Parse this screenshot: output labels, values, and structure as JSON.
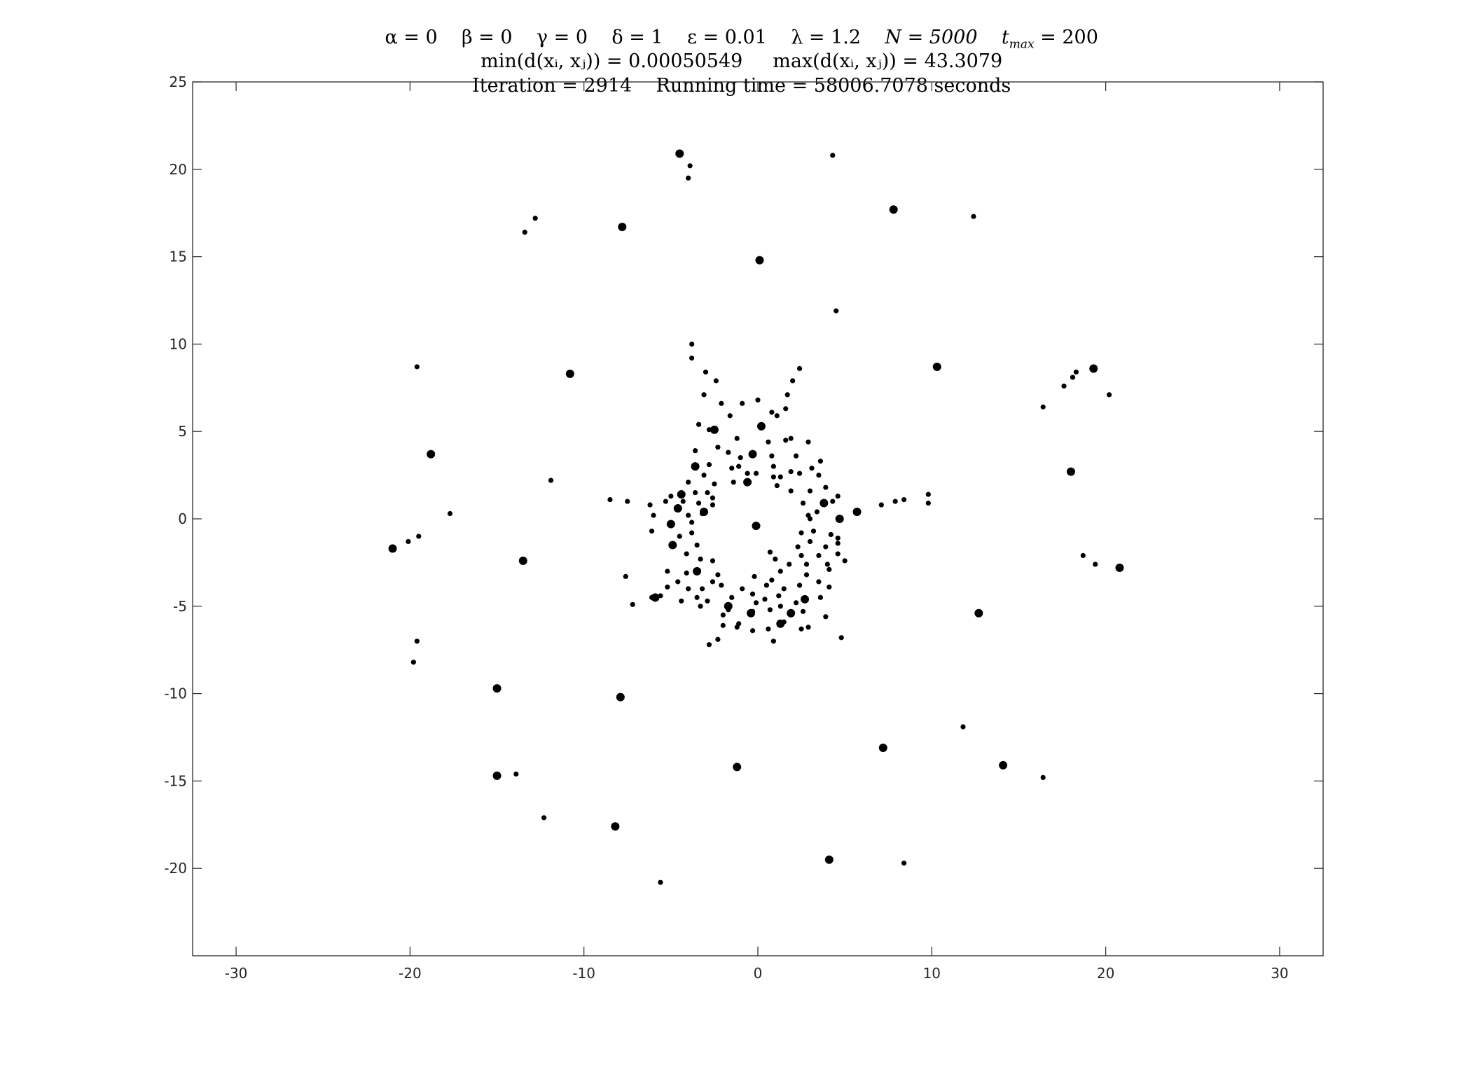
{
  "title": {
    "line1": {
      "alpha": "α = 0",
      "beta": "β = 0",
      "gamma": "γ = 0",
      "delta": "δ = 1",
      "epsilon": "ε = 0.01",
      "lambda": "λ = 1.2",
      "N": "N = 5000",
      "tmax_base": "t",
      "tmax_sub": "max",
      "tmax_value": " = 200"
    },
    "line2": {
      "min": "min(d(xᵢ, xⱼ)) = 0.00050549",
      "max": "max(d(xᵢ, xⱼ)) = 43.3079"
    },
    "line3": {
      "iteration": "Iteration = 2914",
      "running_time": "Running time = 58006.7078 seconds"
    }
  },
  "chart_data": {
    "type": "scatter",
    "title": "",
    "xlabel": "",
    "ylabel": "",
    "xlim": [
      -32.5,
      32.5
    ],
    "ylim": [
      -25,
      25
    ],
    "xticks": [
      -30,
      -20,
      -10,
      0,
      10,
      20,
      30
    ],
    "yticks": [
      -20,
      -15,
      -10,
      -5,
      0,
      5,
      10,
      15,
      20,
      25
    ],
    "grid": false,
    "color": "#000000",
    "small_points": [
      [
        4.3,
        20.8
      ],
      [
        -3.9,
        20.2
      ],
      [
        -4.0,
        19.5
      ],
      [
        12.4,
        17.3
      ],
      [
        -12.8,
        17.2
      ],
      [
        -13.4,
        16.4
      ],
      [
        4.5,
        11.9
      ],
      [
        -3.8,
        10.0
      ],
      [
        -3.8,
        9.2
      ],
      [
        2.4,
        8.6
      ],
      [
        -3.0,
        8.4
      ],
      [
        -2.4,
        7.9
      ],
      [
        2.0,
        7.9
      ],
      [
        -19.6,
        8.7
      ],
      [
        18.3,
        8.4
      ],
      [
        18.1,
        8.1
      ],
      [
        17.6,
        7.6
      ],
      [
        20.2,
        7.1
      ],
      [
        16.4,
        6.4
      ],
      [
        -3.1,
        7.1
      ],
      [
        1.7,
        7.1
      ],
      [
        -2.1,
        6.6
      ],
      [
        -0.9,
        6.6
      ],
      [
        0.0,
        6.8
      ],
      [
        1.6,
        6.3
      ],
      [
        0.8,
        6.1
      ],
      [
        1.1,
        5.9
      ],
      [
        -3.4,
        5.4
      ],
      [
        -2.8,
        5.1
      ],
      [
        -1.2,
        4.6
      ],
      [
        -1.6,
        5.9
      ],
      [
        0.6,
        4.4
      ],
      [
        1.9,
        4.6
      ],
      [
        2.9,
        4.4
      ],
      [
        -2.3,
        4.1
      ],
      [
        -1.7,
        3.8
      ],
      [
        -3.6,
        3.9
      ],
      [
        -1.0,
        3.5
      ],
      [
        0.8,
        3.6
      ],
      [
        2.2,
        3.6
      ],
      [
        3.6,
        3.3
      ],
      [
        -2.8,
        3.1
      ],
      [
        -1.5,
        2.9
      ],
      [
        0.9,
        3.0
      ],
      [
        3.1,
        2.9
      ],
      [
        3.5,
        2.5
      ],
      [
        -3.1,
        2.5
      ],
      [
        -2.5,
        2.0
      ],
      [
        -1.4,
        2.1
      ],
      [
        0.9,
        2.4
      ],
      [
        1.3,
        2.4
      ],
      [
        2.4,
        2.6
      ],
      [
        1.9,
        2.7
      ],
      [
        -0.1,
        2.6
      ],
      [
        -4.0,
        2.1
      ],
      [
        -3.6,
        1.5
      ],
      [
        -2.9,
        1.5
      ],
      [
        1.1,
        1.9
      ],
      [
        1.9,
        1.6
      ],
      [
        3.0,
        1.6
      ],
      [
        3.9,
        1.8
      ],
      [
        4.6,
        1.3
      ],
      [
        -4.3,
        1.0
      ],
      [
        -3.4,
        0.9
      ],
      [
        -2.6,
        1.2
      ],
      [
        -2.6,
        0.8
      ],
      [
        -5.3,
        1.0
      ],
      [
        -6.2,
        0.8
      ],
      [
        -7.5,
        1.0
      ],
      [
        -8.5,
        1.1
      ],
      [
        -11.9,
        2.2
      ],
      [
        2.6,
        0.9
      ],
      [
        4.3,
        1.0
      ],
      [
        -6.0,
        0.2
      ],
      [
        -4.0,
        0.2
      ],
      [
        -3.2,
        0.3
      ],
      [
        -3.8,
        -0.2
      ],
      [
        2.9,
        0.2
      ],
      [
        3.0,
        0.0
      ],
      [
        3.4,
        0.4
      ],
      [
        7.1,
        0.8
      ],
      [
        7.9,
        1.0
      ],
      [
        8.4,
        1.1
      ],
      [
        9.8,
        1.4
      ],
      [
        9.8,
        0.9
      ],
      [
        -17.7,
        0.3
      ],
      [
        -6.1,
        -0.7
      ],
      [
        -3.8,
        -0.8
      ],
      [
        2.5,
        -0.8
      ],
      [
        3.2,
        -0.7
      ],
      [
        4.2,
        -0.9
      ],
      [
        4.6,
        -1.1
      ],
      [
        -19.5,
        -1.0
      ],
      [
        -4.5,
        -1.0
      ],
      [
        3.0,
        -1.3
      ],
      [
        4.6,
        -1.4
      ],
      [
        -20.1,
        -1.3
      ],
      [
        -3.5,
        -1.5
      ],
      [
        2.3,
        -1.6
      ],
      [
        3.9,
        -1.6
      ],
      [
        -4.1,
        -2.0
      ],
      [
        -3.3,
        -2.3
      ],
      [
        2.5,
        -2.1
      ],
      [
        3.5,
        -2.1
      ],
      [
        4.6,
        -2.0
      ],
      [
        5.0,
        -2.4
      ],
      [
        18.7,
        -2.1
      ],
      [
        19.4,
        -2.6
      ],
      [
        -2.6,
        -2.4
      ],
      [
        1.0,
        -2.3
      ],
      [
        1.8,
        -2.6
      ],
      [
        2.8,
        -2.6
      ],
      [
        4.0,
        -2.6
      ],
      [
        -5.2,
        -3.0
      ],
      [
        -4.1,
        -3.1
      ],
      [
        -2.3,
        -3.2
      ],
      [
        -0.2,
        -3.3
      ],
      [
        1.3,
        -3.0
      ],
      [
        2.8,
        -3.2
      ],
      [
        4.1,
        -2.9
      ],
      [
        -7.6,
        -3.3
      ],
      [
        -4.6,
        -3.6
      ],
      [
        -2.6,
        -3.6
      ],
      [
        0.8,
        -3.5
      ],
      [
        3.5,
        -3.6
      ],
      [
        -5.2,
        -3.9
      ],
      [
        -4.0,
        -4.0
      ],
      [
        -3.2,
        -4.0
      ],
      [
        -2.1,
        -3.8
      ],
      [
        -0.9,
        -4.0
      ],
      [
        0.5,
        -3.8
      ],
      [
        1.5,
        -4.0
      ],
      [
        2.4,
        -3.8
      ],
      [
        4.1,
        -3.9
      ],
      [
        -5.6,
        -4.4
      ],
      [
        -6.1,
        -4.5
      ],
      [
        -3.5,
        -4.5
      ],
      [
        -1.5,
        -4.5
      ],
      [
        -0.3,
        -4.3
      ],
      [
        0.4,
        -4.6
      ],
      [
        1.2,
        -4.4
      ],
      [
        -4.4,
        -4.7
      ],
      [
        -2.9,
        -4.7
      ],
      [
        -0.1,
        -4.8
      ],
      [
        2.2,
        -4.8
      ],
      [
        3.6,
        -4.5
      ],
      [
        -7.2,
        -4.9
      ],
      [
        -3.3,
        -5.0
      ],
      [
        -1.7,
        -5.2
      ],
      [
        0.7,
        -5.2
      ],
      [
        1.3,
        -5.0
      ],
      [
        2.6,
        -5.3
      ],
      [
        3.9,
        -5.6
      ],
      [
        -2.0,
        -5.5
      ],
      [
        -0.3,
        -5.3
      ],
      [
        -1.1,
        -6.0
      ],
      [
        -2.0,
        -6.1
      ],
      [
        -1.2,
        -6.2
      ],
      [
        0.6,
        -6.3
      ],
      [
        1.5,
        -5.9
      ],
      [
        2.5,
        -6.3
      ],
      [
        2.9,
        -6.2
      ],
      [
        0.9,
        -7.0
      ],
      [
        -2.3,
        -6.9
      ],
      [
        -2.8,
        -7.2
      ],
      [
        -0.3,
        -6.4
      ],
      [
        4.8,
        -6.8
      ],
      [
        -19.6,
        -7.0
      ],
      [
        -19.8,
        -8.2
      ],
      [
        11.8,
        -11.9
      ],
      [
        -13.9,
        -14.6
      ],
      [
        16.4,
        -14.8
      ],
      [
        -12.3,
        -17.1
      ],
      [
        8.4,
        -19.7
      ],
      [
        -5.6,
        -20.8
      ],
      [
        1.6,
        4.5
      ],
      [
        -0.6,
        2.6
      ],
      [
        0.7,
        -1.9
      ],
      [
        -5.0,
        1.3
      ],
      [
        -1.1,
        3.0
      ]
    ],
    "large_points": [
      [
        -4.5,
        20.9
      ],
      [
        7.8,
        17.7
      ],
      [
        -7.8,
        16.7
      ],
      [
        0.1,
        14.8
      ],
      [
        -10.8,
        8.3
      ],
      [
        10.3,
        8.7
      ],
      [
        19.3,
        8.6
      ],
      [
        -18.8,
        3.7
      ],
      [
        18.0,
        2.7
      ],
      [
        -2.5,
        5.1
      ],
      [
        0.2,
        5.3
      ],
      [
        -0.3,
        3.7
      ],
      [
        -3.6,
        3.0
      ],
      [
        -4.4,
        1.4
      ],
      [
        -4.6,
        0.6
      ],
      [
        -3.1,
        0.4
      ],
      [
        4.7,
        0.0
      ],
      [
        5.7,
        0.4
      ],
      [
        -5.0,
        -0.3
      ],
      [
        -0.1,
        -0.4
      ],
      [
        -21.0,
        -1.7
      ],
      [
        -4.9,
        -1.5
      ],
      [
        -13.5,
        -2.4
      ],
      [
        20.8,
        -2.8
      ],
      [
        -3.5,
        -3.0
      ],
      [
        -5.9,
        -4.5
      ],
      [
        -1.7,
        -5.0
      ],
      [
        -0.4,
        -5.4
      ],
      [
        1.9,
        -5.4
      ],
      [
        12.7,
        -5.4
      ],
      [
        -15.0,
        -9.7
      ],
      [
        -7.9,
        -10.2
      ],
      [
        7.2,
        -13.1
      ],
      [
        -1.2,
        -14.2
      ],
      [
        14.1,
        -14.1
      ],
      [
        -15.0,
        -14.7
      ],
      [
        -8.2,
        -17.6
      ],
      [
        4.1,
        -19.5
      ],
      [
        2.7,
        -4.6
      ],
      [
        1.3,
        -6.0
      ],
      [
        3.8,
        0.9
      ],
      [
        -0.6,
        2.1
      ]
    ]
  }
}
